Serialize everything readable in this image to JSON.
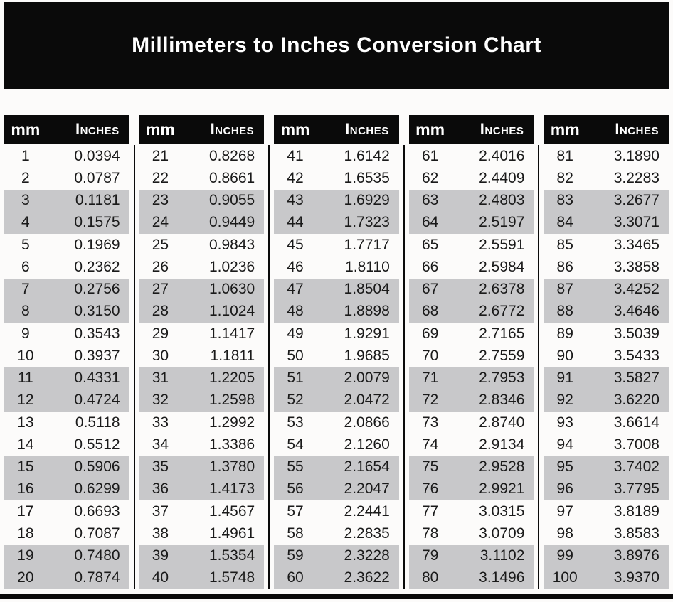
{
  "title": "Millimeters to Inches Conversion Chart",
  "colors": {
    "banner_bg": "#0a0a0a",
    "header_bg": "#0a0a0a",
    "banner_text": "#ffffff",
    "body_text": "#1a1a1a",
    "shaded_row_bg": "#c8c8ca",
    "page_bg": "#fcfbfa"
  },
  "chart_data": {
    "type": "table",
    "title": "Millimeters to Inches Conversion Chart",
    "layout": "5 column groups of 20 rows; row pairs shaded gray (rows 3-4, 7-8, 11-12, 15-16, 19-20 of each group); black vertical rule between groups",
    "column_groups": [
      {
        "headers": [
          "mm",
          "Inches"
        ],
        "rows": [
          [
            "1",
            "0.0394"
          ],
          [
            "2",
            "0.0787"
          ],
          [
            "3",
            "0.1181"
          ],
          [
            "4",
            "0.1575"
          ],
          [
            "5",
            "0.1969"
          ],
          [
            "6",
            "0.2362"
          ],
          [
            "7",
            "0.2756"
          ],
          [
            "8",
            "0.3150"
          ],
          [
            "9",
            "0.3543"
          ],
          [
            "10",
            "0.3937"
          ],
          [
            "11",
            "0.4331"
          ],
          [
            "12",
            "0.4724"
          ],
          [
            "13",
            "0.5118"
          ],
          [
            "14",
            "0.5512"
          ],
          [
            "15",
            "0.5906"
          ],
          [
            "16",
            "0.6299"
          ],
          [
            "17",
            "0.6693"
          ],
          [
            "18",
            "0.7087"
          ],
          [
            "19",
            "0.7480"
          ],
          [
            "20",
            "0.7874"
          ]
        ]
      },
      {
        "headers": [
          "mm",
          "Inches"
        ],
        "rows": [
          [
            "21",
            "0.8268"
          ],
          [
            "22",
            "0.8661"
          ],
          [
            "23",
            "0.9055"
          ],
          [
            "24",
            "0.9449"
          ],
          [
            "25",
            "0.9843"
          ],
          [
            "26",
            "1.0236"
          ],
          [
            "27",
            "1.0630"
          ],
          [
            "28",
            "1.1024"
          ],
          [
            "29",
            "1.1417"
          ],
          [
            "30",
            "1.1811"
          ],
          [
            "31",
            "1.2205"
          ],
          [
            "32",
            "1.2598"
          ],
          [
            "33",
            "1.2992"
          ],
          [
            "34",
            "1.3386"
          ],
          [
            "35",
            "1.3780"
          ],
          [
            "36",
            "1.4173"
          ],
          [
            "37",
            "1.4567"
          ],
          [
            "38",
            "1.4961"
          ],
          [
            "39",
            "1.5354"
          ],
          [
            "40",
            "1.5748"
          ]
        ]
      },
      {
        "headers": [
          "mm",
          "Inches"
        ],
        "rows": [
          [
            "41",
            "1.6142"
          ],
          [
            "42",
            "1.6535"
          ],
          [
            "43",
            "1.6929"
          ],
          [
            "44",
            "1.7323"
          ],
          [
            "45",
            "1.7717"
          ],
          [
            "46",
            "1.8110"
          ],
          [
            "47",
            "1.8504"
          ],
          [
            "48",
            "1.8898"
          ],
          [
            "49",
            "1.9291"
          ],
          [
            "50",
            "1.9685"
          ],
          [
            "51",
            "2.0079"
          ],
          [
            "52",
            "2.0472"
          ],
          [
            "53",
            "2.0866"
          ],
          [
            "54",
            "2.1260"
          ],
          [
            "55",
            "2.1654"
          ],
          [
            "56",
            "2.2047"
          ],
          [
            "57",
            "2.2441"
          ],
          [
            "58",
            "2.2835"
          ],
          [
            "59",
            "2.3228"
          ],
          [
            "60",
            "2.3622"
          ]
        ]
      },
      {
        "headers": [
          "mm",
          "Inches"
        ],
        "rows": [
          [
            "61",
            "2.4016"
          ],
          [
            "62",
            "2.4409"
          ],
          [
            "63",
            "2.4803"
          ],
          [
            "64",
            "2.5197"
          ],
          [
            "65",
            "2.5591"
          ],
          [
            "66",
            "2.5984"
          ],
          [
            "67",
            "2.6378"
          ],
          [
            "68",
            "2.6772"
          ],
          [
            "69",
            "2.7165"
          ],
          [
            "70",
            "2.7559"
          ],
          [
            "71",
            "2.7953"
          ],
          [
            "72",
            "2.8346"
          ],
          [
            "73",
            "2.8740"
          ],
          [
            "74",
            "2.9134"
          ],
          [
            "75",
            "2.9528"
          ],
          [
            "76",
            "2.9921"
          ],
          [
            "77",
            "3.0315"
          ],
          [
            "78",
            "3.0709"
          ],
          [
            "79",
            "3.1102"
          ],
          [
            "80",
            "3.1496"
          ]
        ]
      },
      {
        "headers": [
          "mm",
          "Inches"
        ],
        "rows": [
          [
            "81",
            "3.1890"
          ],
          [
            "82",
            "3.2283"
          ],
          [
            "83",
            "3.2677"
          ],
          [
            "84",
            "3.3071"
          ],
          [
            "85",
            "3.3465"
          ],
          [
            "86",
            "3.3858"
          ],
          [
            "87",
            "3.4252"
          ],
          [
            "88",
            "3.4646"
          ],
          [
            "89",
            "3.5039"
          ],
          [
            "90",
            "3.5433"
          ],
          [
            "91",
            "3.5827"
          ],
          [
            "92",
            "3.6220"
          ],
          [
            "93",
            "3.6614"
          ],
          [
            "94",
            "3.7008"
          ],
          [
            "95",
            "3.7402"
          ],
          [
            "96",
            "3.7795"
          ],
          [
            "97",
            "3.8189"
          ],
          [
            "98",
            "3.8583"
          ],
          [
            "99",
            "3.8976"
          ],
          [
            "100",
            "3.9370"
          ]
        ]
      }
    ]
  }
}
